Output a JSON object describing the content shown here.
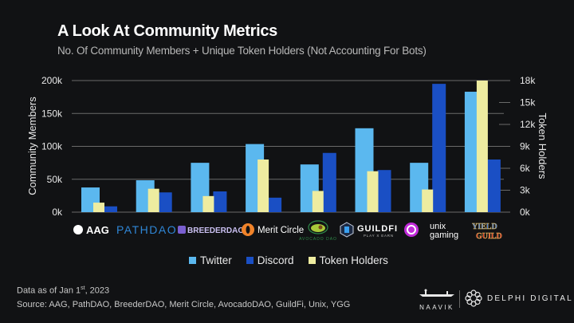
{
  "header": {
    "title": "A Look At Community Metrics",
    "subtitle": "No. Of Community Members + Unique Token Holders (Not Accounting For Bots)"
  },
  "colors": {
    "background": "#111214",
    "twitter": "#5bb8ef",
    "discord": "#1a4fc4",
    "token_holders": "#eeeca0",
    "grid": "#6a6a6a"
  },
  "chart_data": {
    "type": "bar",
    "title": "A Look At Community Metrics",
    "subtitle": "No. Of Community Members + Unique Token Holders (Not Accounting For Bots)",
    "categories": [
      "AAG",
      "PathDAO",
      "BreederDAO",
      "Merit Circle",
      "AvocadoDAO",
      "GuildFi",
      "Unix Gaming",
      "Yield Guild"
    ],
    "series": [
      {
        "name": "Twitter",
        "axis": "left",
        "values": [
          37500,
          48500,
          75000,
          103500,
          72500,
          127500,
          75000,
          183000
        ]
      },
      {
        "name": "Discord",
        "axis": "left",
        "values": [
          8800,
          30000,
          31500,
          22000,
          90000,
          64000,
          195000,
          80000
        ]
      },
      {
        "name": "Token Holders",
        "axis": "right",
        "values": [
          1300,
          3200,
          2200,
          7200,
          2900,
          5600,
          3100,
          18000
        ]
      }
    ],
    "ylabel": "Community Members",
    "ylabel_right": "Token Holders",
    "ylim": [
      0,
      200000
    ],
    "ylim_right": [
      0,
      18000
    ],
    "yticks": [
      "0k",
      "50k",
      "100k",
      "150k",
      "200k"
    ],
    "yticks_right": [
      "0k",
      "3k",
      "6k",
      "9k",
      "12k",
      "15k",
      "18k"
    ],
    "grid": true,
    "legend_position": "bottom",
    "category_logos": [
      {
        "label": "AAG"
      },
      {
        "label": "PATHDAO"
      },
      {
        "label": "BREEDERDAO"
      },
      {
        "label": "Merit Circle"
      },
      {
        "label": "AVOCADO DAO"
      },
      {
        "label": "GUILDFI",
        "tagline": "PLAY X EARN"
      },
      {
        "label": "unix",
        "label2": "gaming"
      },
      {
        "label": "YIELD",
        "label2": "GUILD"
      }
    ]
  },
  "legend": [
    {
      "label": "Twitter"
    },
    {
      "label": "Discord"
    },
    {
      "label": "Token Holders"
    }
  ],
  "footer": {
    "date_prefix": "Data as of Jan 1",
    "date_sup": "st",
    "date_suffix": ", 2023",
    "source": "Source: AAG, PathDAO, BreederDAO, Merit Circle, AvocadoDAO, GuildFi, Unix, YGG"
  },
  "brands": {
    "naavik": "NAAVIK",
    "delphi": "DELPHI DIGITAL"
  }
}
